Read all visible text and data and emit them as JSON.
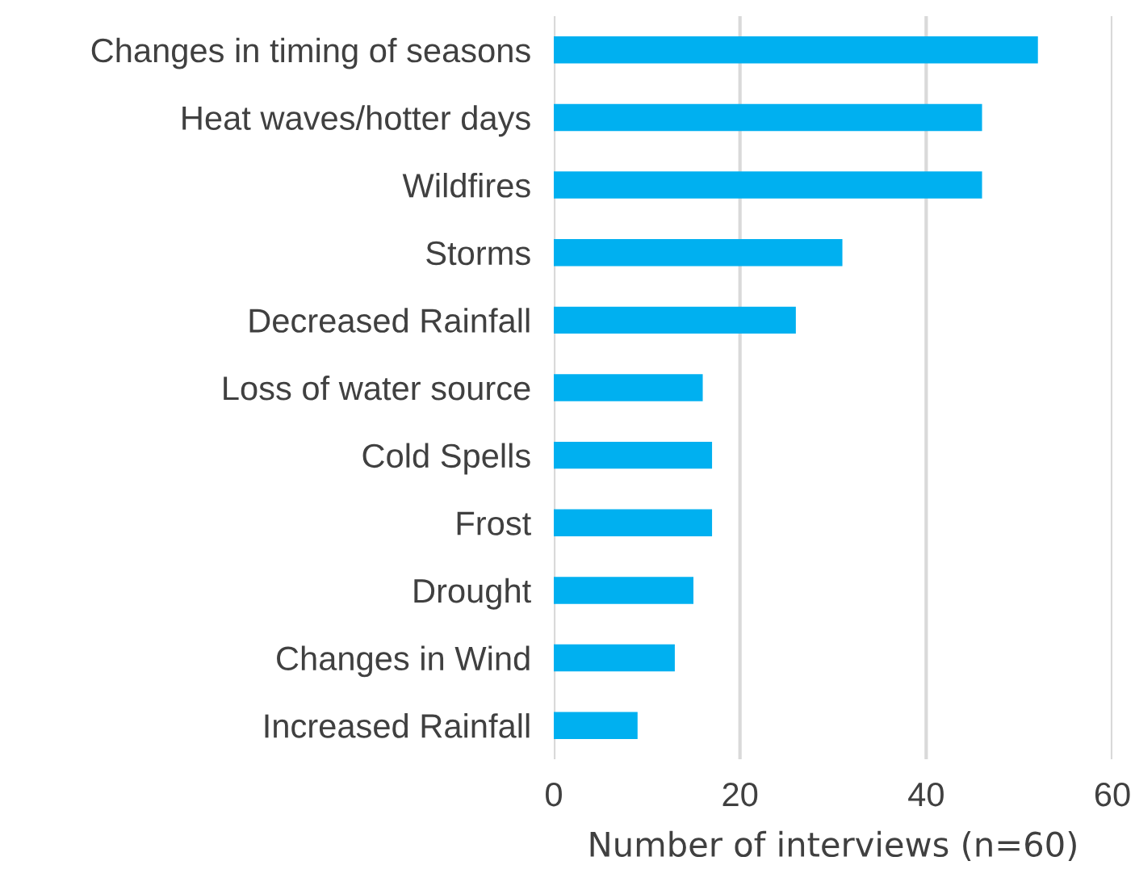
{
  "chart_data": {
    "type": "bar",
    "orientation": "horizontal",
    "categories": [
      "Changes in timing of seasons",
      "Heat waves/hotter days",
      "Wildfires",
      "Storms",
      "Decreased Rainfall",
      "Loss of water source",
      "Cold Spells",
      "Frost",
      "Drought",
      "Changes in Wind",
      "Increased Rainfall"
    ],
    "values": [
      52,
      46,
      46,
      31,
      26,
      16,
      17,
      17,
      15,
      13,
      9
    ],
    "color": "#00b0f0",
    "xlabel": "Number of interviews (n=60)",
    "xlim": [
      0,
      60
    ],
    "xticks": [
      0,
      20,
      40,
      60
    ],
    "grid": "x"
  }
}
